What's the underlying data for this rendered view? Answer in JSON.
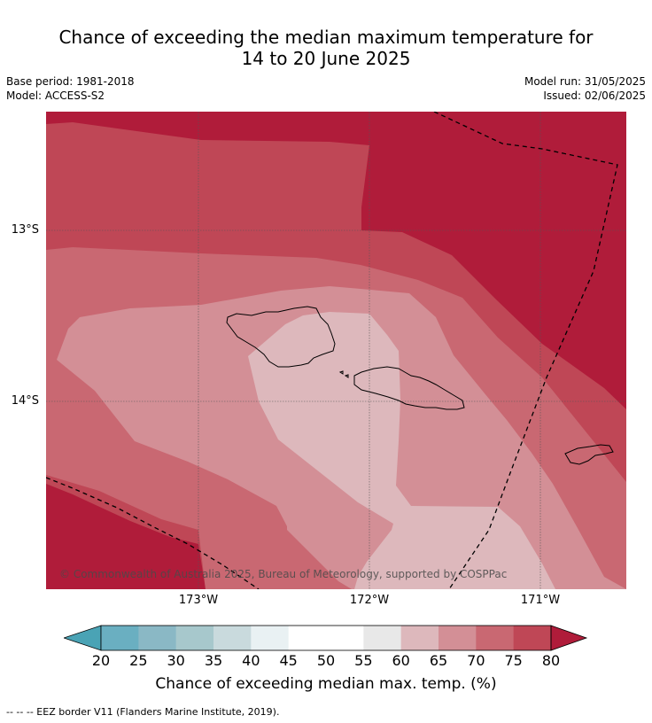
{
  "title_line1": "Chance of exceeding the median maximum temperature for",
  "title_line2": "14 to 20 June 2025",
  "base_period": "Base period: 1981-2018",
  "model": "Model: ACCESS-S2",
  "model_run": "Model run: 31/05/2025",
  "issued": "Issued: 02/06/2025",
  "copyright": "© Commonwealth of Australia 2025, Bureau of Meteorology, supported by COSPPac",
  "lat_labels": [
    "13°S",
    "14°S"
  ],
  "lon_labels": [
    "173°W",
    "172°W",
    "171°W"
  ],
  "colorbar": {
    "ticks": [
      "20",
      "25",
      "30",
      "35",
      "40",
      "45",
      "50",
      "55",
      "60",
      "65",
      "70",
      "75",
      "80"
    ],
    "title": "Chance of exceeding median max. temp. (%)",
    "colors": [
      "#4aa3b5",
      "#6aafc1",
      "#8ab8c5",
      "#a7c8cc",
      "#c9dadd",
      "#e9f1f3",
      "#ffffff",
      "#ffffff",
      "#e8e8e8",
      "#ddb8bc",
      "#d38f96",
      "#c96872",
      "#bf4756",
      "#b01c3a"
    ]
  },
  "footnote": "--  --  -- EEZ border V11 (Flanders Marine Institute, 2019).",
  "zone_colors": {
    "p80": "#b01c3a",
    "p75": "#bf4756",
    "p70": "#c96872",
    "p65": "#d38f96",
    "p60": "#ddb8bc"
  }
}
